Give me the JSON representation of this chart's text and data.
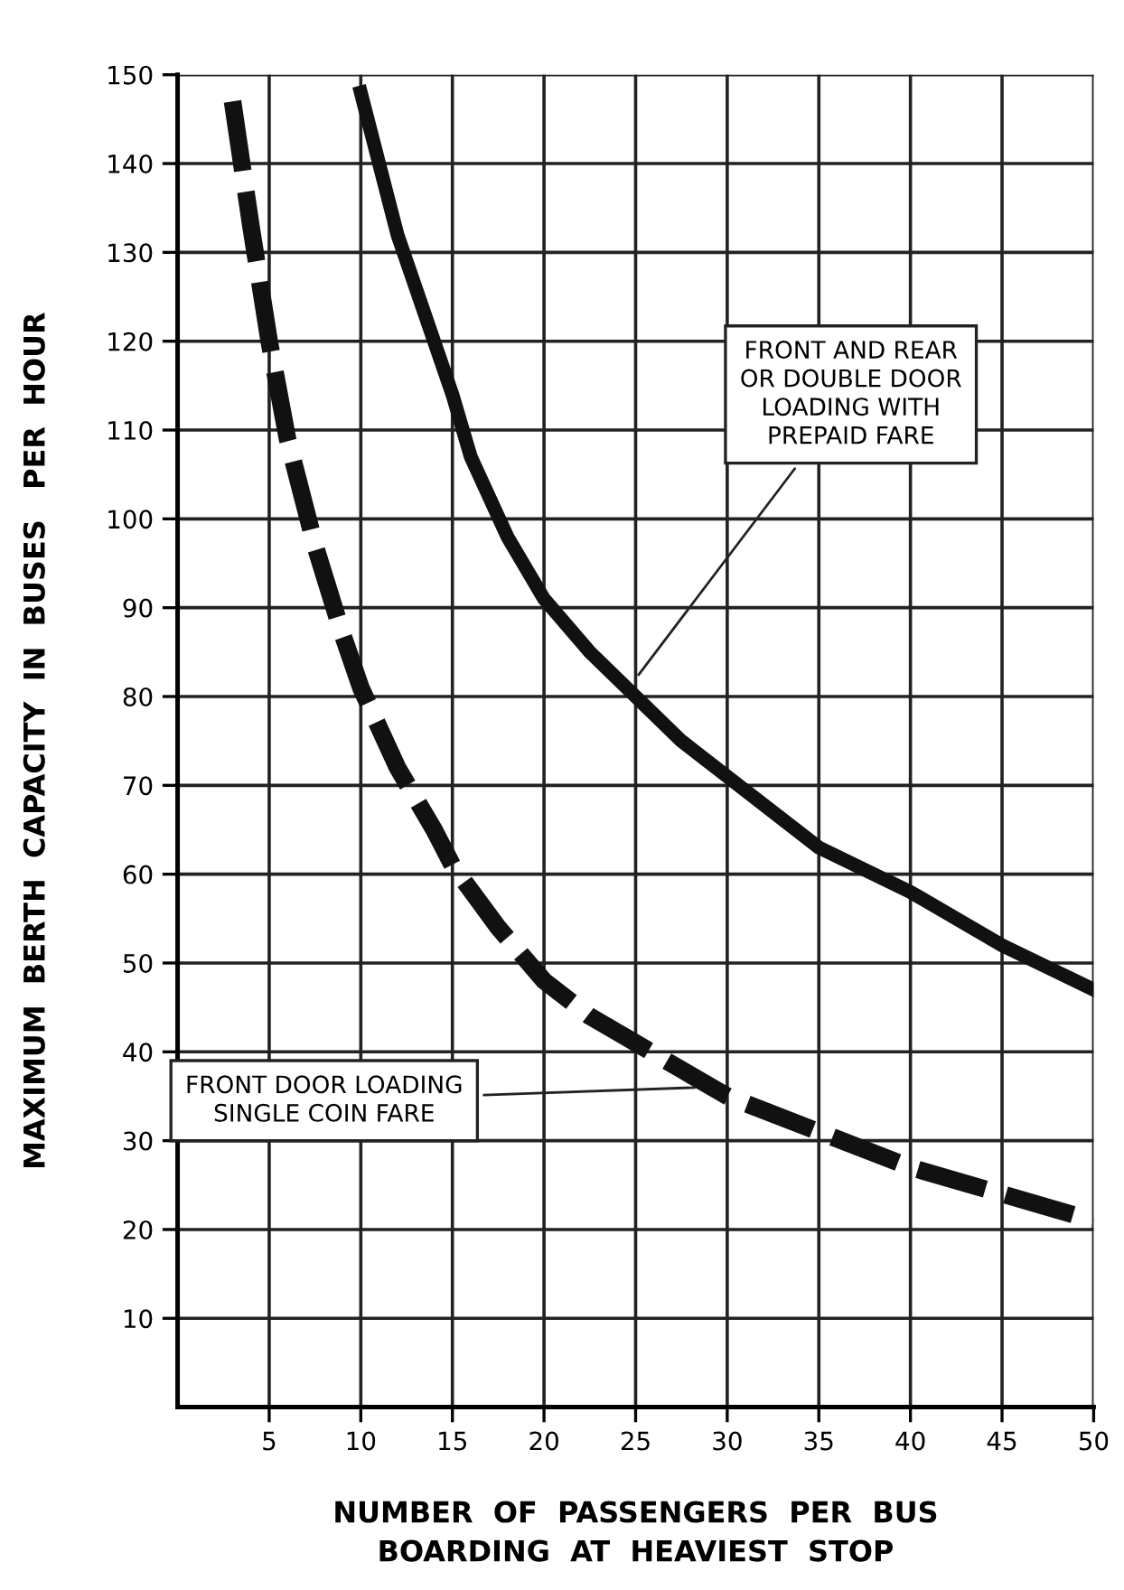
{
  "chart_data": {
    "type": "line",
    "xlabel": "NUMBER  OF  PASSENGERS  PER  BUS\nBOARDING  AT  HEAVIEST  STOP",
    "ylabel": "MAXIMUM  BERTH  CAPACITY  IN  BUSES   PER  HOUR",
    "xlim": [
      0,
      50
    ],
    "ylim": [
      0,
      150
    ],
    "xticks": [
      5,
      10,
      15,
      20,
      25,
      30,
      35,
      40,
      45,
      50
    ],
    "yticks": [
      10,
      20,
      30,
      40,
      50,
      60,
      70,
      80,
      90,
      100,
      110,
      120,
      130,
      140,
      150
    ],
    "grid": true,
    "legend": false,
    "series": [
      {
        "color": "#111111",
        "line_style": "solid",
        "x": [
          10,
          12,
          14,
          15,
          16,
          18,
          20,
          22.5,
          25,
          27.5,
          30,
          35,
          40,
          45,
          50
        ],
        "values": [
          148,
          132,
          120,
          114,
          107,
          98,
          91,
          85,
          80,
          75,
          71,
          63,
          58,
          52,
          47
        ]
      },
      {
        "color": "#111111",
        "line_style": "dashed",
        "x": [
          3,
          4,
          5,
          6,
          7.5,
          9,
          10,
          12,
          14,
          15,
          17.5,
          20,
          22.5,
          25,
          27.5,
          30,
          35,
          40,
          45,
          50
        ],
        "values": [
          147,
          133,
          120,
          109,
          97,
          87,
          81,
          72,
          65,
          61,
          54,
          48,
          44,
          41,
          38,
          35,
          31,
          27,
          24,
          21
        ]
      }
    ],
    "annotations": [
      {
        "text": "FRONT AND REAR\nOR DOUBLE DOOR\nLOADING WITH\nPREPAID FARE",
        "x": 25,
        "y": 82
      },
      {
        "text": "FRONT DOOR LOADING\nSINGLE COIN FARE",
        "x": 28.5,
        "y": 36
      }
    ]
  }
}
